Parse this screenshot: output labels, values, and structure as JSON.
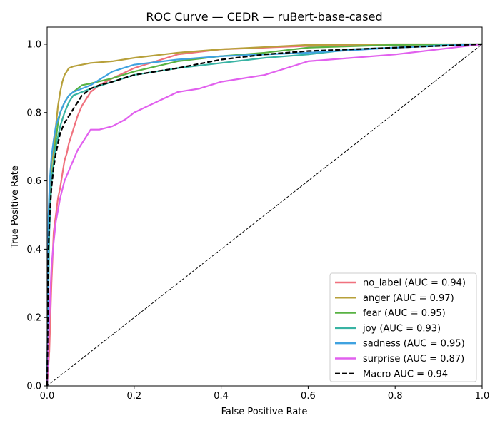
{
  "chart_data": {
    "type": "line",
    "title": "ROC Curve — CEDR — ruBert-base-cased",
    "xlabel": "False Positive Rate",
    "ylabel": "True Positive Rate",
    "xlim": [
      0.0,
      1.0
    ],
    "ylim": [
      0.0,
      1.05
    ],
    "xticks": [
      0.0,
      0.2,
      0.4,
      0.6,
      0.8,
      1.0
    ],
    "yticks": [
      0.0,
      0.2,
      0.4,
      0.6,
      0.8,
      1.0
    ],
    "xtick_labels": [
      "0.0",
      "0.2",
      "0.4",
      "0.6",
      "0.8",
      "1.0"
    ],
    "ytick_labels": [
      "0.0",
      "0.2",
      "0.4",
      "0.6",
      "0.8",
      "1.0"
    ],
    "grid": false,
    "legend_position": "lower-right",
    "series": [
      {
        "name": "no_label (AUC = 0.94)",
        "color": "#f0717e",
        "style": "solid",
        "x": [
          0,
          0.005,
          0.01,
          0.015,
          0.02,
          0.025,
          0.03,
          0.035,
          0.04,
          0.045,
          0.05,
          0.06,
          0.07,
          0.08,
          0.09,
          0.1,
          0.12,
          0.15,
          0.2,
          0.3,
          0.4,
          0.5,
          0.6,
          0.7,
          0.8,
          0.9,
          1.0
        ],
        "y": [
          0,
          0.1,
          0.3,
          0.45,
          0.5,
          0.55,
          0.58,
          0.62,
          0.66,
          0.68,
          0.71,
          0.75,
          0.79,
          0.82,
          0.84,
          0.86,
          0.88,
          0.9,
          0.93,
          0.97,
          0.985,
          0.99,
          0.995,
          0.997,
          0.998,
          0.999,
          1.0
        ]
      },
      {
        "name": "anger (AUC = 0.97)",
        "color": "#b7a03a",
        "style": "solid",
        "x": [
          0,
          0.005,
          0.01,
          0.015,
          0.02,
          0.025,
          0.03,
          0.035,
          0.04,
          0.05,
          0.06,
          0.08,
          0.1,
          0.15,
          0.2,
          0.3,
          0.4,
          0.6,
          0.8,
          1.0
        ],
        "y": [
          0,
          0.55,
          0.65,
          0.7,
          0.76,
          0.82,
          0.86,
          0.89,
          0.91,
          0.93,
          0.935,
          0.94,
          0.945,
          0.95,
          0.96,
          0.975,
          0.985,
          0.998,
          1.0,
          1.0
        ]
      },
      {
        "name": "fear (AUC = 0.95)",
        "color": "#58b243",
        "style": "solid",
        "x": [
          0,
          0.005,
          0.01,
          0.015,
          0.02,
          0.025,
          0.03,
          0.04,
          0.05,
          0.06,
          0.08,
          0.1,
          0.15,
          0.2,
          0.3,
          0.4,
          0.5,
          0.6,
          0.8,
          1.0
        ],
        "y": [
          0,
          0.5,
          0.6,
          0.66,
          0.72,
          0.77,
          0.8,
          0.83,
          0.85,
          0.86,
          0.88,
          0.885,
          0.9,
          0.92,
          0.95,
          0.965,
          0.975,
          0.99,
          0.998,
          1.0
        ]
      },
      {
        "name": "joy (AUC = 0.93)",
        "color": "#38b3a3",
        "style": "solid",
        "x": [
          0,
          0.005,
          0.01,
          0.02,
          0.03,
          0.04,
          0.05,
          0.06,
          0.08,
          0.1,
          0.15,
          0.2,
          0.25,
          0.3,
          0.4,
          0.5,
          0.6,
          0.7,
          0.8,
          0.95,
          1.0
        ],
        "y": [
          0,
          0.45,
          0.6,
          0.7,
          0.76,
          0.8,
          0.83,
          0.85,
          0.86,
          0.87,
          0.89,
          0.91,
          0.92,
          0.93,
          0.945,
          0.96,
          0.97,
          0.985,
          0.99,
          1.0,
          1.0
        ]
      },
      {
        "name": "sadness (AUC = 0.95)",
        "color": "#3fa2e0",
        "style": "solid",
        "x": [
          0,
          0.003,
          0.006,
          0.01,
          0.015,
          0.02,
          0.025,
          0.03,
          0.04,
          0.05,
          0.06,
          0.08,
          0.1,
          0.15,
          0.2,
          0.3,
          0.4,
          0.6,
          0.8,
          1.0
        ],
        "y": [
          0,
          0.5,
          0.6,
          0.67,
          0.72,
          0.76,
          0.78,
          0.8,
          0.83,
          0.85,
          0.86,
          0.87,
          0.88,
          0.92,
          0.94,
          0.955,
          0.965,
          0.975,
          0.99,
          1.0
        ]
      },
      {
        "name": "surprise (AUC = 0.87)",
        "color": "#e160ee",
        "style": "solid",
        "x": [
          0,
          0.005,
          0.01,
          0.015,
          0.02,
          0.03,
          0.04,
          0.05,
          0.06,
          0.07,
          0.08,
          0.09,
          0.1,
          0.12,
          0.15,
          0.18,
          0.2,
          0.25,
          0.3,
          0.35,
          0.4,
          0.45,
          0.5,
          0.55,
          0.6,
          0.7,
          0.8,
          0.9,
          1.0
        ],
        "y": [
          0,
          0.2,
          0.35,
          0.42,
          0.48,
          0.55,
          0.6,
          0.63,
          0.66,
          0.69,
          0.71,
          0.73,
          0.75,
          0.75,
          0.76,
          0.78,
          0.8,
          0.83,
          0.86,
          0.87,
          0.89,
          0.9,
          0.91,
          0.93,
          0.95,
          0.96,
          0.97,
          0.985,
          1.0
        ]
      },
      {
        "name": "Macro AUC = 0.94",
        "color": "#000000",
        "style": "dashed",
        "x": [
          0,
          0.003,
          0.006,
          0.01,
          0.015,
          0.02,
          0.025,
          0.03,
          0.04,
          0.05,
          0.06,
          0.07,
          0.08,
          0.1,
          0.12,
          0.15,
          0.2,
          0.3,
          0.4,
          0.5,
          0.6,
          0.7,
          0.8,
          0.9,
          1.0
        ],
        "y": [
          0,
          0.4,
          0.5,
          0.58,
          0.64,
          0.68,
          0.71,
          0.74,
          0.77,
          0.79,
          0.81,
          0.83,
          0.85,
          0.87,
          0.88,
          0.89,
          0.91,
          0.93,
          0.955,
          0.97,
          0.98,
          0.985,
          0.99,
          0.995,
          1.0
        ]
      }
    ],
    "reference_line": {
      "x": [
        0,
        1
      ],
      "y": [
        0,
        1
      ],
      "color": "#000000",
      "style": "dashed"
    }
  }
}
